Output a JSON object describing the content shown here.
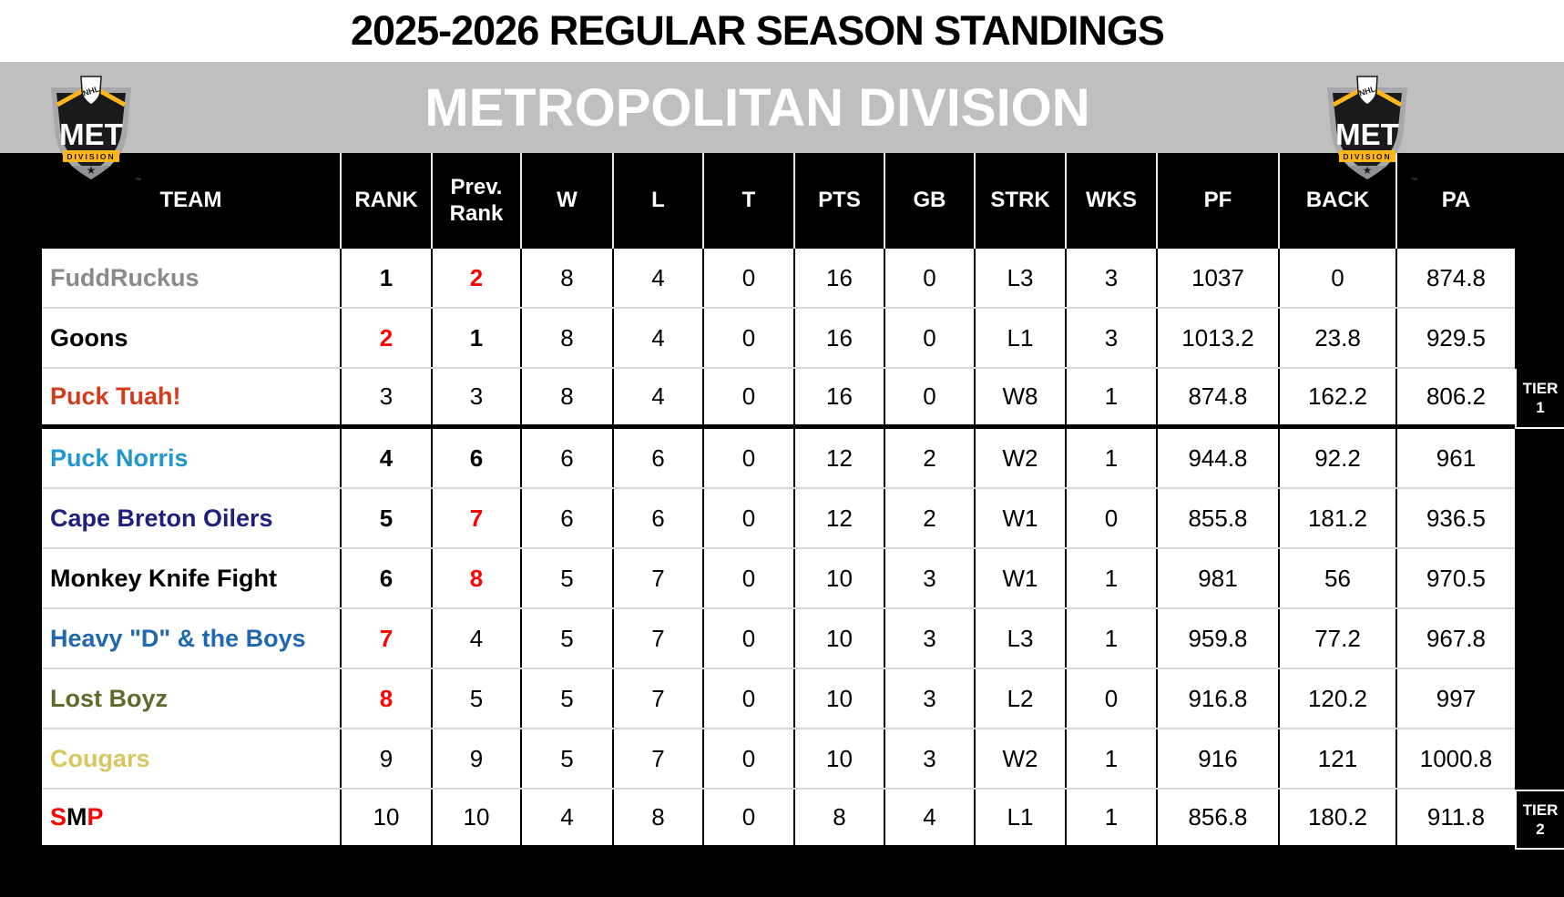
{
  "title": "2025-2026 REGULAR SEASON STANDINGS",
  "division": {
    "name": "METROPOLITAN DIVISION",
    "logo": {
      "league": "NHL",
      "abbr": "MET",
      "sub": "DIVISION",
      "trademark": "™"
    }
  },
  "colors": {
    "banner_gray": "#BFBFBF",
    "header_black": "#000000",
    "rank_red": "#FF0000",
    "row_divider": "#D9D9D9",
    "logo_gold": "#FDB71A"
  },
  "table": {
    "columns": [
      {
        "key": "team",
        "label": "TEAM"
      },
      {
        "key": "rank",
        "label": "RANK"
      },
      {
        "key": "prev",
        "label": "Prev. Rank"
      },
      {
        "key": "w",
        "label": "W"
      },
      {
        "key": "l",
        "label": "L"
      },
      {
        "key": "t",
        "label": "T"
      },
      {
        "key": "pts",
        "label": "PTS"
      },
      {
        "key": "gb",
        "label": "GB"
      },
      {
        "key": "strk",
        "label": "STRK"
      },
      {
        "key": "wks",
        "label": "WKS"
      },
      {
        "key": "pf",
        "label": "PF"
      },
      {
        "key": "back",
        "label": "BACK"
      },
      {
        "key": "pa",
        "label": "PA"
      }
    ],
    "rows": [
      {
        "team": "FuddRuckus",
        "team_color": "#8A8A8A",
        "rank": "1",
        "rank_color": "#000000",
        "rank_bold": true,
        "prev": "2",
        "prev_color": "#FF0000",
        "prev_bold": true,
        "w": "8",
        "l": "4",
        "t": "0",
        "pts": "16",
        "gb": "0",
        "strk": "L3",
        "wks": "3",
        "pf": "1037",
        "back": "0",
        "pa": "874.8",
        "tier_end": false
      },
      {
        "team": "Goons",
        "team_color": "#000000",
        "rank": "2",
        "rank_color": "#FF0000",
        "rank_bold": true,
        "prev": "1",
        "prev_color": "#000000",
        "prev_bold": true,
        "w": "8",
        "l": "4",
        "t": "0",
        "pts": "16",
        "gb": "0",
        "strk": "L1",
        "wks": "3",
        "pf": "1013.2",
        "back": "23.8",
        "pa": "929.5",
        "tier_end": false
      },
      {
        "team": "Puck Tuah!",
        "team_color": "#D43A1C",
        "rank": "3",
        "rank_color": "#000000",
        "rank_bold": false,
        "prev": "3",
        "prev_color": "#000000",
        "prev_bold": false,
        "w": "8",
        "l": "4",
        "t": "0",
        "pts": "16",
        "gb": "0",
        "strk": "W8",
        "wks": "1",
        "pf": "874.8",
        "back": "162.2",
        "pa": "806.2",
        "tier_end": true
      },
      {
        "team": "Puck Norris",
        "team_color": "#2196D1",
        "rank": "4",
        "rank_color": "#000000",
        "rank_bold": true,
        "prev": "6",
        "prev_color": "#000000",
        "prev_bold": true,
        "w": "6",
        "l": "6",
        "t": "0",
        "pts": "12",
        "gb": "2",
        "strk": "W2",
        "wks": "1",
        "pf": "944.8",
        "back": "92.2",
        "pa": "961",
        "tier_end": false
      },
      {
        "team": "Cape Breton Oilers",
        "team_color": "#1F1F7E",
        "rank": "5",
        "rank_color": "#000000",
        "rank_bold": true,
        "prev": "7",
        "prev_color": "#FF0000",
        "prev_bold": true,
        "w": "6",
        "l": "6",
        "t": "0",
        "pts": "12",
        "gb": "2",
        "strk": "W1",
        "wks": "0",
        "pf": "855.8",
        "back": "181.2",
        "pa": "936.5",
        "tier_end": false
      },
      {
        "team": "Monkey Knife Fight",
        "team_color": "#000000",
        "rank": "6",
        "rank_color": "#000000",
        "rank_bold": true,
        "prev": "8",
        "prev_color": "#FF0000",
        "prev_bold": true,
        "w": "5",
        "l": "7",
        "t": "0",
        "pts": "10",
        "gb": "3",
        "strk": "W1",
        "wks": "1",
        "pf": "981",
        "back": "56",
        "pa": "970.5",
        "tier_end": false
      },
      {
        "team": "Heavy \"D\" & the Boys",
        "team_color": "#2068B0",
        "rank": "7",
        "rank_color": "#FF0000",
        "rank_bold": true,
        "prev": "4",
        "prev_color": "#000000",
        "prev_bold": false,
        "w": "5",
        "l": "7",
        "t": "0",
        "pts": "10",
        "gb": "3",
        "strk": "L3",
        "wks": "1",
        "pf": "959.8",
        "back": "77.2",
        "pa": "967.8",
        "tier_end": false
      },
      {
        "team": "Lost Boyz",
        "team_color": "#5E6B2B",
        "rank": "8",
        "rank_color": "#FF0000",
        "rank_bold": true,
        "prev": "5",
        "prev_color": "#000000",
        "prev_bold": false,
        "w": "5",
        "l": "7",
        "t": "0",
        "pts": "10",
        "gb": "3",
        "strk": "L2",
        "wks": "0",
        "pf": "916.8",
        "back": "120.2",
        "pa": "997",
        "tier_end": false
      },
      {
        "team": "Cougars",
        "team_color": "#D9C65F",
        "rank": "9",
        "rank_color": "#000000",
        "rank_bold": false,
        "prev": "9",
        "prev_color": "#000000",
        "prev_bold": false,
        "w": "5",
        "l": "7",
        "t": "0",
        "pts": "10",
        "gb": "3",
        "strk": "W2",
        "wks": "1",
        "pf": "916",
        "back": "121",
        "pa": "1000.8",
        "tier_end": false
      },
      {
        "team": "SMP",
        "team_segments": [
          {
            "text": "S",
            "color": "#FF0000"
          },
          {
            "text": "M",
            "color": "#000000"
          },
          {
            "text": "P",
            "color": "#FF0000"
          }
        ],
        "rank": "10",
        "rank_color": "#000000",
        "rank_bold": false,
        "prev": "10",
        "prev_color": "#000000",
        "prev_bold": false,
        "w": "4",
        "l": "8",
        "t": "0",
        "pts": "8",
        "gb": "4",
        "strk": "L1",
        "wks": "1",
        "pf": "856.8",
        "back": "180.2",
        "pa": "911.8",
        "tier_end": true
      }
    ],
    "tiers": [
      {
        "line1": "TIER",
        "line2": "1"
      },
      {
        "line1": "TIER",
        "line2": "2"
      }
    ]
  }
}
